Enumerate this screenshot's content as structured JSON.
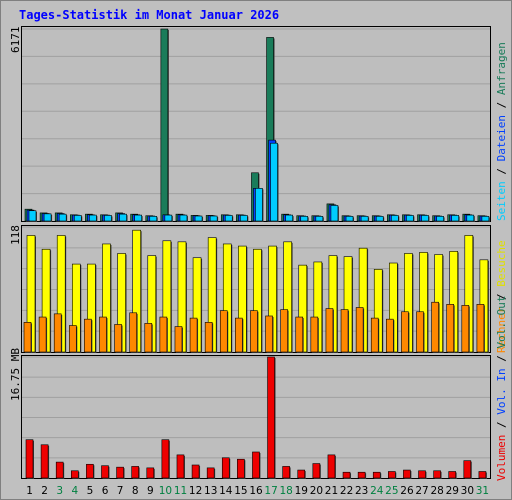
{
  "title": "Tages-Statistik im Monat Januar 2026",
  "colors": {
    "anfragen": "#1a7c5a",
    "dateien": "#0040ff",
    "seiten": "#00ccff",
    "besuche": "#ffff00",
    "rechner": "#ff8800",
    "volumen": "#ee0000",
    "weekend_label": "#008040",
    "weekday_label": "#000000"
  },
  "legend": {
    "top": [
      {
        "label": "Anfragen",
        "color": "#1a7c5a"
      },
      {
        "label": "Dateien",
        "color": "#0040ff"
      },
      {
        "label": "Seiten",
        "color": "#00ccff"
      }
    ],
    "middle": [
      {
        "label": "Besuche",
        "color": "#ffff00"
      },
      {
        "label": "Rechner",
        "color": "#ff8800"
      }
    ],
    "bottom": [
      {
        "label": "Volumen",
        "color": "#ee0000"
      },
      {
        "label": "Vol. In",
        "color": "#0040ff"
      },
      {
        "label": "Vol. Out",
        "color": "#1a7c5a"
      }
    ]
  },
  "chart_data": {
    "type": "bar",
    "title": "Tages-Statistik im Monat Januar 2026",
    "categories": [
      "1",
      "2",
      "3",
      "4",
      "5",
      "6",
      "7",
      "8",
      "9",
      "10",
      "11",
      "12",
      "13",
      "14",
      "15",
      "16",
      "17",
      "18",
      "19",
      "20",
      "21",
      "22",
      "23",
      "24",
      "25",
      "26",
      "27",
      "28",
      "29",
      "30",
      "31"
    ],
    "weekend_days": [
      "3",
      "4",
      "10",
      "11",
      "17",
      "18",
      "24",
      "25",
      "31"
    ],
    "panels": [
      {
        "name": "requests",
        "ymax_label": "6171",
        "ylim": [
          0,
          6171
        ],
        "series": [
          {
            "name": "Anfragen",
            "values": [
              380,
              260,
              260,
              200,
              220,
              200,
              260,
              220,
              170,
              6171,
              220,
              180,
              180,
              200,
              200,
              1550,
              5900,
              220,
              170,
              170,
              550,
              170,
              170,
              170,
              200,
              200,
              200,
              170,
              200,
              220,
              170
            ]
          },
          {
            "name": "Dateien",
            "values": [
              350,
              240,
              240,
              190,
              200,
              190,
              240,
              200,
              160,
              200,
              200,
              170,
              170,
              190,
              190,
              1050,
              2600,
              200,
              160,
              160,
              520,
              160,
              160,
              160,
              190,
              190,
              190,
              160,
              190,
              200,
              160
            ]
          },
          {
            "name": "Seiten",
            "values": [
              330,
              230,
              220,
              180,
              190,
              180,
              220,
              190,
              150,
              190,
              190,
              160,
              160,
              180,
              180,
              1050,
              2500,
              190,
              150,
              150,
              500,
              150,
              150,
              150,
              180,
              180,
              180,
              150,
              180,
              190,
              150
            ]
          }
        ]
      },
      {
        "name": "visits",
        "ymax_label": "118",
        "ylim": [
          0,
          118
        ],
        "series": [
          {
            "name": "Besuche",
            "values": [
              110,
              97,
              110,
              83,
              83,
              102,
              93,
              115,
              91,
              105,
              104,
              89,
              108,
              102,
              100,
              97,
              100,
              104,
              82,
              85,
              91,
              90,
              98,
              78,
              84,
              93,
              94,
              92,
              95,
              110,
              87
            ]
          },
          {
            "name": "Rechner",
            "values": [
              28,
              33,
              36,
              25,
              31,
              33,
              26,
              37,
              27,
              33,
              24,
              32,
              28,
              39,
              32,
              39,
              34,
              40,
              33,
              33,
              41,
              40,
              42,
              32,
              31,
              38,
              38,
              47,
              45,
              44,
              45
            ]
          }
        ]
      },
      {
        "name": "volume",
        "ymax_label": "16.75 MB",
        "ylim": [
          0,
          16.75
        ],
        "series": [
          {
            "name": "Volumen",
            "values": [
              5.3,
              4.6,
              2.2,
              1.0,
              1.9,
              1.7,
              1.5,
              1.6,
              1.4,
              5.3,
              3.2,
              1.8,
              1.4,
              2.8,
              2.6,
              3.6,
              16.75,
              1.6,
              1.1,
              2.0,
              3.2,
              0.8,
              0.8,
              0.8,
              0.9,
              1.1,
              1.0,
              1.0,
              0.9,
              2.4,
              0.9
            ]
          }
        ]
      }
    ]
  }
}
